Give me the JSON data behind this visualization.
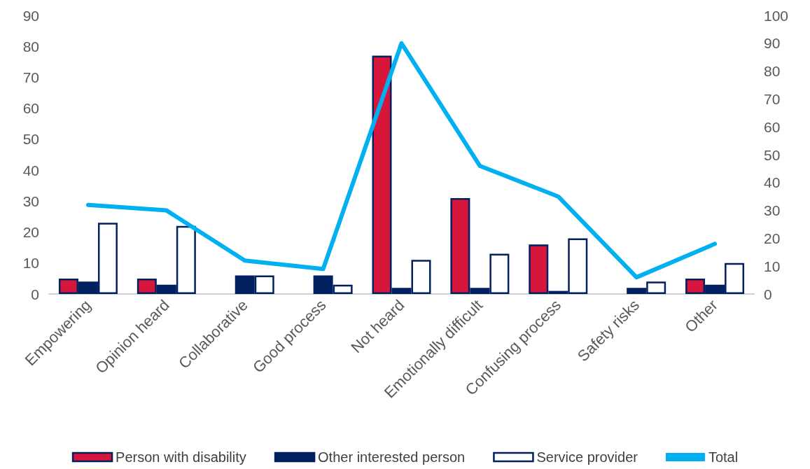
{
  "chart_data": {
    "type": "bar",
    "categories": [
      "Empowering",
      "Opinion heard",
      "Collaborative",
      "Good process",
      "Not heard",
      "Emotionally difficult",
      "Confusing process",
      "Safety risks",
      "Other"
    ],
    "series": [
      {
        "name": "Person with disability",
        "color": "#d7163b",
        "values": [
          5,
          5,
          0,
          0,
          77,
          31,
          16,
          0,
          5
        ]
      },
      {
        "name": "Other interested person",
        "color": "#002060",
        "values": [
          4,
          3,
          6,
          6,
          2,
          2,
          1,
          2,
          3
        ]
      },
      {
        "name": "Service provider",
        "color": "#ffffff",
        "values": [
          23,
          22,
          6,
          3,
          11,
          13,
          18,
          4,
          10
        ]
      },
      {
        "name": "Total",
        "type": "line",
        "axis": "y2",
        "color": "#00b0f0",
        "values": [
          32,
          30,
          12,
          9,
          90,
          46,
          35,
          6,
          18
        ]
      }
    ],
    "ylim": [
      0,
      90
    ],
    "yticks": [
      0,
      10,
      20,
      30,
      40,
      50,
      60,
      70,
      80,
      90
    ],
    "y2lim": [
      0,
      100
    ],
    "y2ticks": [
      0,
      10,
      20,
      30,
      40,
      50,
      60,
      70,
      80,
      90,
      100
    ],
    "grid": false,
    "legend": "bottom",
    "marker": "none"
  }
}
